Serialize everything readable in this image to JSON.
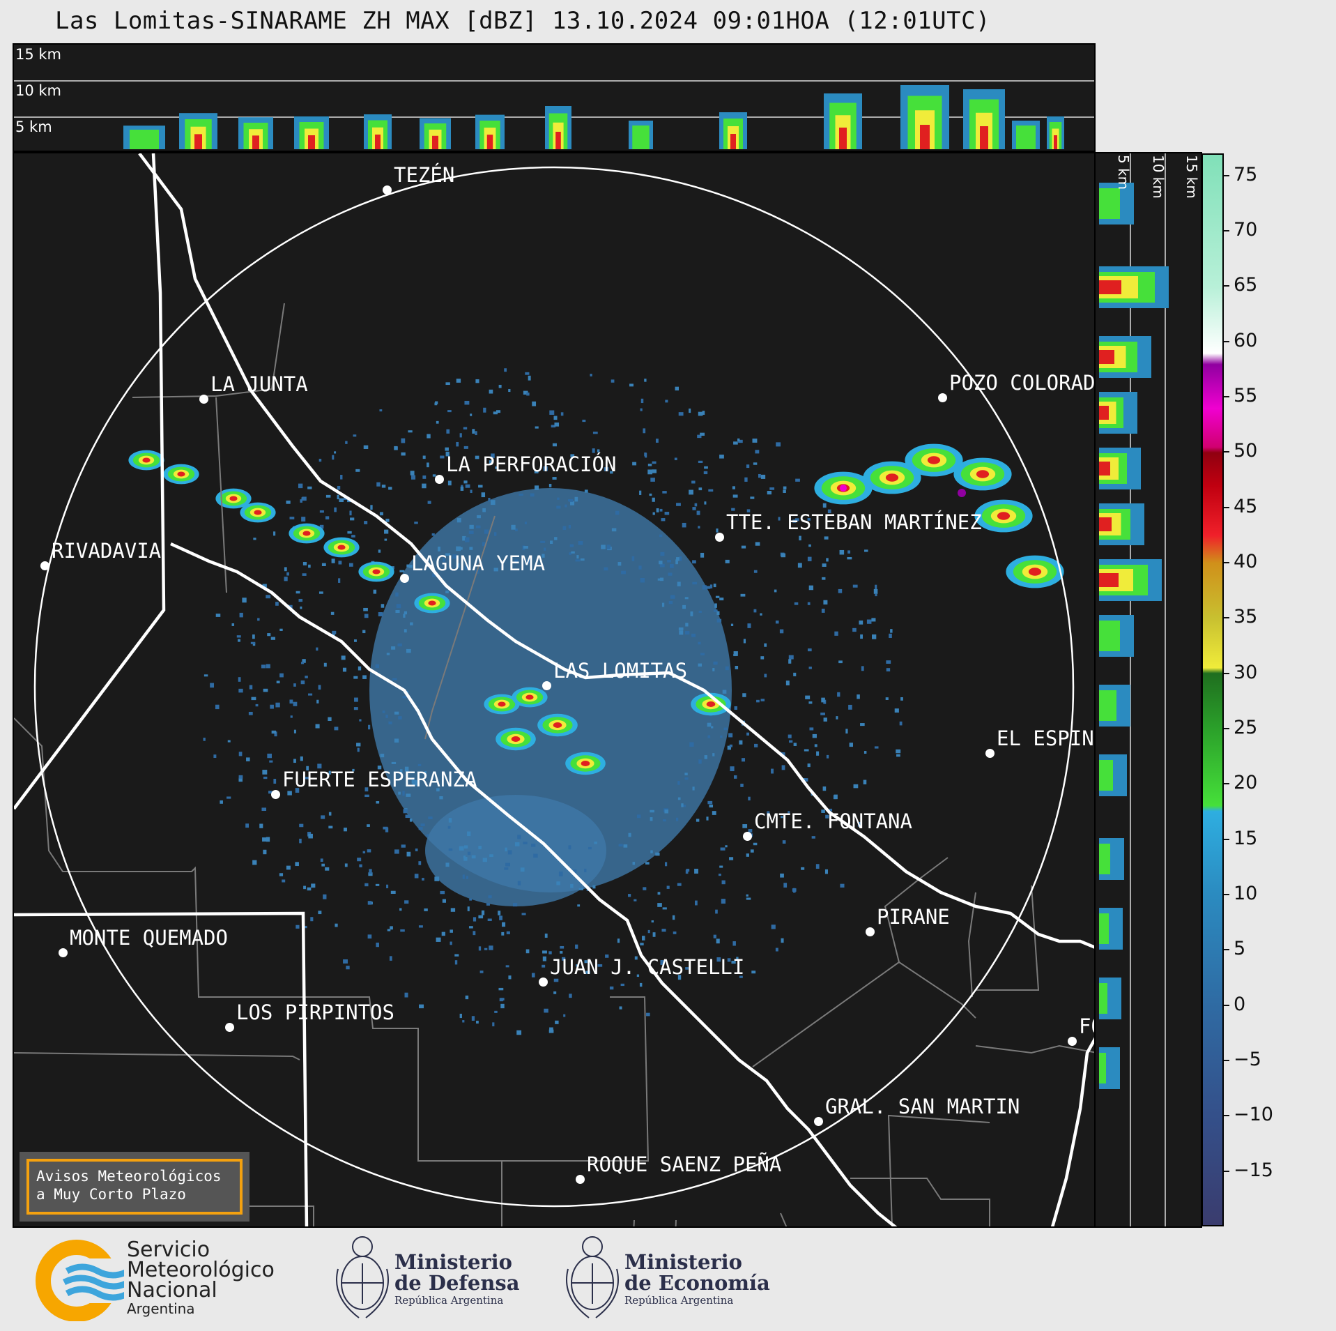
{
  "title": "Las Lomitas-SINARAME ZH MAX [dBZ] 13.10.2024 09:01HOA (12:01UTC)",
  "top_panel": {
    "altitude_labels": [
      "15 km",
      "10 km",
      "5 km"
    ]
  },
  "side_panel": {
    "altitude_labels": [
      "5 km",
      "10 km",
      "15 km"
    ]
  },
  "cities": [
    {
      "name": "TEZÉN"
    },
    {
      "name": "LA JUNTA"
    },
    {
      "name": "POZO COLORADO"
    },
    {
      "name": "LA PERFORACIÓN"
    },
    {
      "name": "TTE. ESTEBAN MARTÍNEZ"
    },
    {
      "name": "RIVADAVIA"
    },
    {
      "name": "LAGUNA YEMA"
    },
    {
      "name": "LAS LOMITAS"
    },
    {
      "name": "EL ESPINILLO"
    },
    {
      "name": "FUERTE ESPERANZA"
    },
    {
      "name": "CMTE. FONTANA"
    },
    {
      "name": "PIRANE"
    },
    {
      "name": "MONTE QUEMADO"
    },
    {
      "name": "JUAN J. CASTELLI"
    },
    {
      "name": "LOS PIRPINTOS"
    },
    {
      "name": "FORMOSA"
    },
    {
      "name": "GRAL. SAN MARTIN"
    },
    {
      "name": "ROQUE SAENZ PEÑA"
    }
  ],
  "colorbar": {
    "unit": "dBZ",
    "min": -20,
    "max": 77,
    "ticks": [
      "75",
      "70",
      "65",
      "60",
      "55",
      "50",
      "45",
      "40",
      "35",
      "30",
      "25",
      "20",
      "15",
      "10",
      "5",
      "0",
      "−5",
      "−10",
      "−15"
    ]
  },
  "notice": {
    "line1": "Avisos Meteorológicos",
    "line2": "a Muy Corto Plazo"
  },
  "logos": {
    "smn": {
      "line1": "Servicio",
      "line2": "Meteorológico",
      "line3": "Nacional",
      "line4": "Argentina"
    },
    "defensa": {
      "line1": "Ministerio",
      "line2": "de Defensa",
      "line3": "República Argentina"
    },
    "economia": {
      "line1": "Ministerio",
      "line2": "de Economía",
      "line3": "República Argentina"
    }
  }
}
